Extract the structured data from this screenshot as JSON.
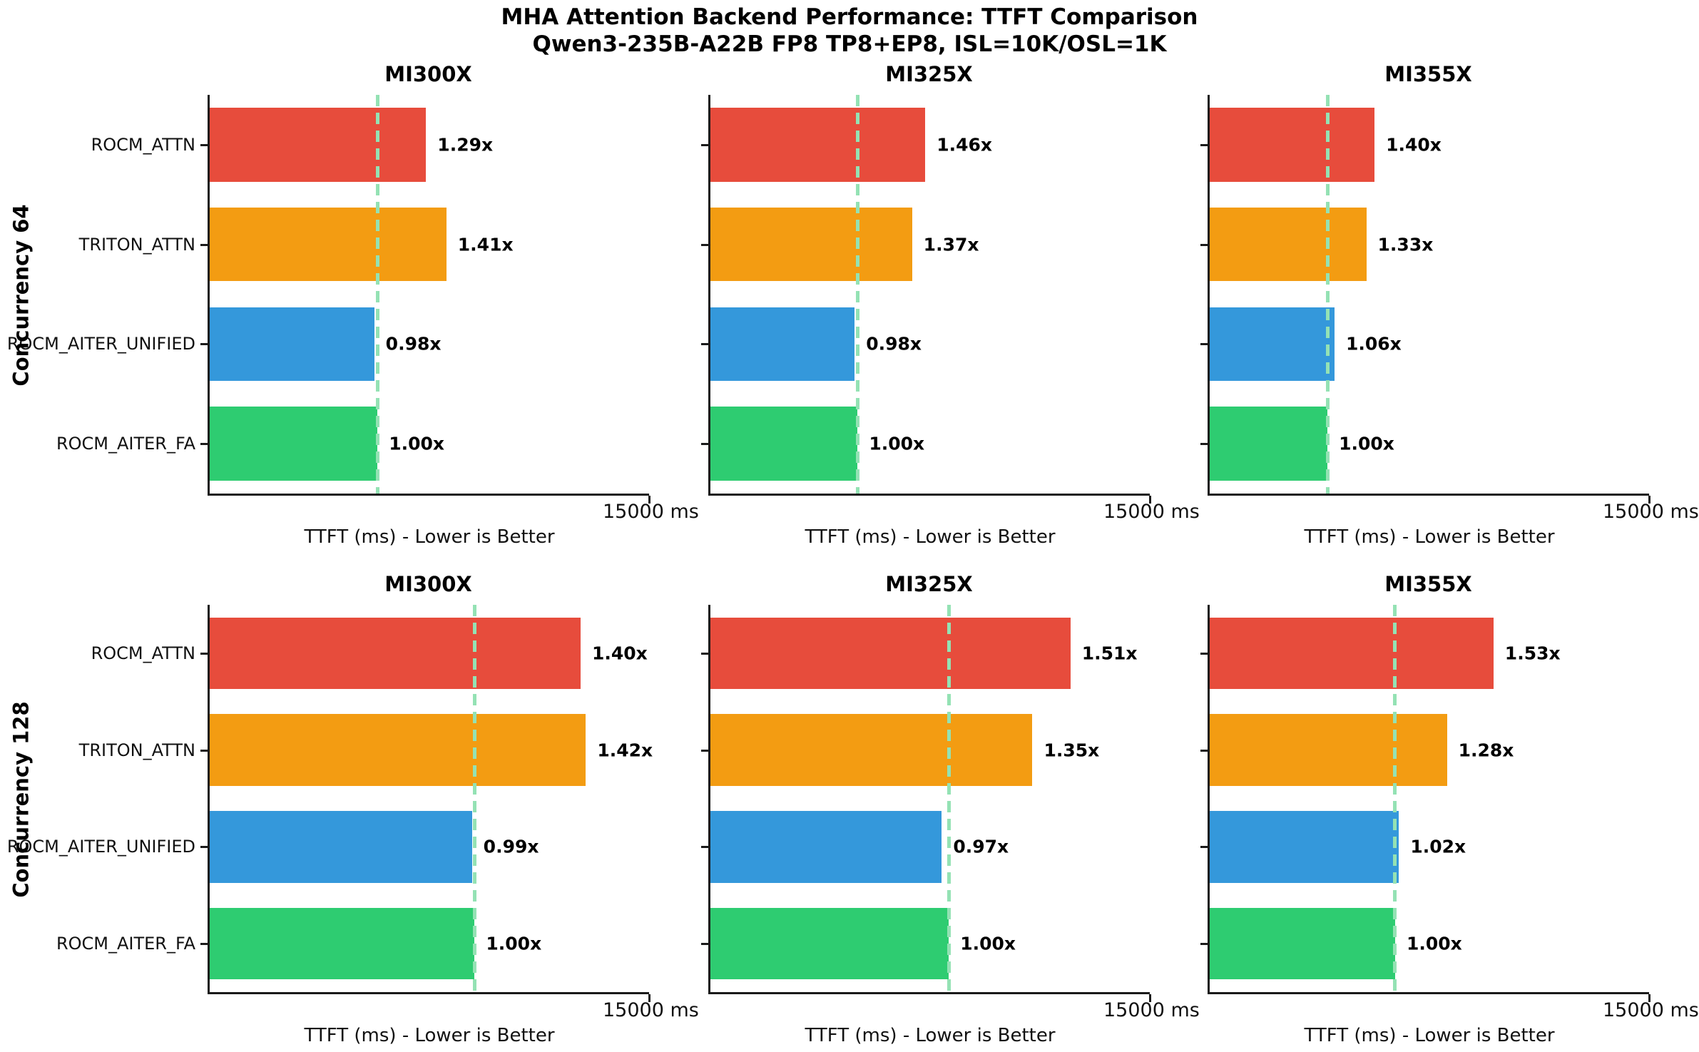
{
  "figure": {
    "title": "MHA Attention Backend Performance: TTFT Comparison",
    "subtitle": "Qwen3-235B-A22B FP8 TP8+EP8, ISL=10K/OSL=1K"
  },
  "row_labels": [
    "Concurrency 64",
    "Concurrency 128"
  ],
  "x_axis": {
    "xlabel": "TTFT (ms) - Lower is Better",
    "end_tick_label": "15000 ms",
    "max_ms": 15000
  },
  "categories": [
    "ROCM_ATTN",
    "TRITON_ATTN",
    "ROCM_AITER_UNIFIED",
    "ROCM_AITER_FA"
  ],
  "colors": {
    "ROCM_ATTN": "#E74C3C",
    "TRITON_ATTN": "#F39C12",
    "ROCM_AITER_UNIFIED": "#3498DB",
    "ROCM_AITER_FA": "#2ECC71",
    "ref_line": "#94E2B4",
    "axis": "#1A1A1A",
    "background": "#FFFFFF"
  },
  "chart_data": [
    {
      "type": "bar",
      "orientation": "horizontal",
      "row": "Concurrency 64",
      "title": "MI300X",
      "categories": [
        "ROCM_ATTN",
        "TRITON_ATTN",
        "ROCM_AITER_UNIFIED",
        "ROCM_AITER_FA"
      ],
      "ratio_labels": [
        "1.29x",
        "1.41x",
        "0.98x",
        "1.00x"
      ],
      "ratios": [
        1.29,
        1.41,
        0.98,
        1.0
      ],
      "values_ms_est": [
        7350,
        8040,
        5590,
        5700
      ],
      "baseline_ms_est": 5700,
      "ref_line_ms": 5700,
      "xlim": [
        0,
        15000
      ],
      "xlabel": "TTFT (ms) - Lower is Better",
      "x_end_tick_label": "15000 ms",
      "grid": "off",
      "legend": "none"
    },
    {
      "type": "bar",
      "orientation": "horizontal",
      "row": "Concurrency 64",
      "title": "MI325X",
      "categories": [
        "ROCM_ATTN",
        "TRITON_ATTN",
        "ROCM_AITER_UNIFIED",
        "ROCM_AITER_FA"
      ],
      "ratio_labels": [
        "1.46x",
        "1.37x",
        "0.98x",
        "1.00x"
      ],
      "ratios": [
        1.46,
        1.37,
        0.98,
        1.0
      ],
      "values_ms_est": [
        7300,
        6850,
        4900,
        5000
      ],
      "baseline_ms_est": 5000,
      "ref_line_ms": 5000,
      "xlim": [
        0,
        15000
      ],
      "xlabel": "TTFT (ms) - Lower is Better",
      "x_end_tick_label": "15000 ms",
      "grid": "off",
      "legend": "none"
    },
    {
      "type": "bar",
      "orientation": "horizontal",
      "row": "Concurrency 64",
      "title": "MI355X",
      "categories": [
        "ROCM_ATTN",
        "TRITON_ATTN",
        "ROCM_AITER_UNIFIED",
        "ROCM_AITER_FA"
      ],
      "ratio_labels": [
        "1.40x",
        "1.33x",
        "1.06x",
        "1.00x"
      ],
      "ratios": [
        1.4,
        1.33,
        1.06,
        1.0
      ],
      "values_ms_est": [
        5600,
        5320,
        4240,
        4000
      ],
      "baseline_ms_est": 4000,
      "ref_line_ms": 4000,
      "xlim": [
        0,
        15000
      ],
      "xlabel": "TTFT (ms) - Lower is Better",
      "x_end_tick_label": "15000 ms",
      "grid": "off",
      "legend": "none"
    },
    {
      "type": "bar",
      "orientation": "horizontal",
      "row": "Concurrency 128",
      "title": "MI300X",
      "categories": [
        "ROCM_ATTN",
        "TRITON_ATTN",
        "ROCM_AITER_UNIFIED",
        "ROCM_AITER_FA"
      ],
      "ratio_labels": [
        "1.40x",
        "1.42x",
        "0.99x",
        "1.00x"
      ],
      "ratios": [
        1.4,
        1.42,
        0.99,
        1.0
      ],
      "values_ms_est": [
        12600,
        12780,
        8910,
        9000
      ],
      "baseline_ms_est": 9000,
      "ref_line_ms": 9000,
      "xlim": [
        0,
        15000
      ],
      "xlabel": "TTFT (ms) - Lower is Better",
      "x_end_tick_label": "15000 ms",
      "grid": "off",
      "legend": "none"
    },
    {
      "type": "bar",
      "orientation": "horizontal",
      "row": "Concurrency 128",
      "title": "MI325X",
      "categories": [
        "ROCM_ATTN",
        "TRITON_ATTN",
        "ROCM_AITER_UNIFIED",
        "ROCM_AITER_FA"
      ],
      "ratio_labels": [
        "1.51x",
        "1.35x",
        "0.97x",
        "1.00x"
      ],
      "ratios": [
        1.51,
        1.35,
        0.97,
        1.0
      ],
      "values_ms_est": [
        12230,
        10940,
        7860,
        8100
      ],
      "baseline_ms_est": 8100,
      "ref_line_ms": 8100,
      "xlim": [
        0,
        15000
      ],
      "xlabel": "TTFT (ms) - Lower is Better",
      "x_end_tick_label": "15000 ms",
      "grid": "off",
      "legend": "none"
    },
    {
      "type": "bar",
      "orientation": "horizontal",
      "row": "Concurrency 128",
      "title": "MI355X",
      "categories": [
        "ROCM_ATTN",
        "TRITON_ATTN",
        "ROCM_AITER_UNIFIED",
        "ROCM_AITER_FA"
      ],
      "ratio_labels": [
        "1.53x",
        "1.28x",
        "1.02x",
        "1.00x"
      ],
      "ratios": [
        1.53,
        1.28,
        1.02,
        1.0
      ],
      "values_ms_est": [
        9640,
        8060,
        6430,
        6300
      ],
      "baseline_ms_est": 6300,
      "ref_line_ms": 6300,
      "xlim": [
        0,
        15000
      ],
      "xlabel": "TTFT (ms) - Lower is Better",
      "x_end_tick_label": "15000 ms",
      "grid": "off",
      "legend": "none"
    }
  ]
}
